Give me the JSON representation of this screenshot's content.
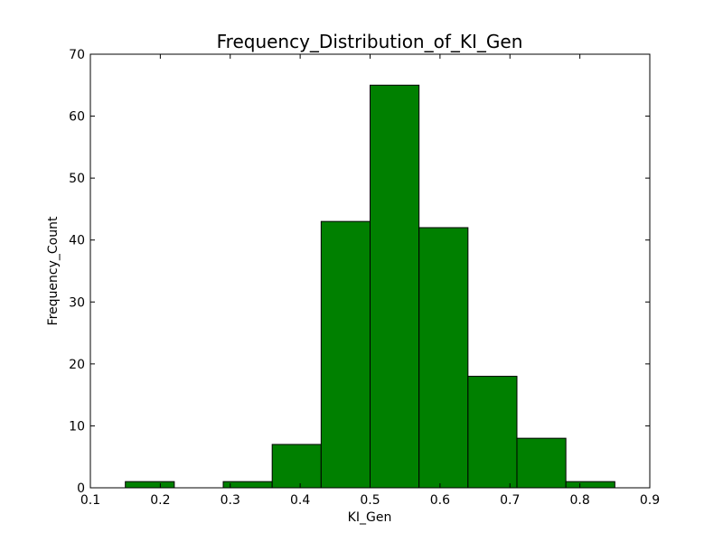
{
  "chart_data": {
    "type": "bar",
    "title": "Frequency_Distribution_of_KI_Gen",
    "xlabel": "KI_Gen",
    "ylabel": "Frequency_Count",
    "xlim": [
      0.1,
      0.9
    ],
    "ylim": [
      0,
      70
    ],
    "xticks": [
      "0.1",
      "0.2",
      "0.3",
      "0.4",
      "0.5",
      "0.6",
      "0.7",
      "0.8",
      "0.9"
    ],
    "yticks": [
      "0",
      "10",
      "20",
      "30",
      "40",
      "50",
      "60",
      "70"
    ],
    "grid": false,
    "bins": [
      {
        "x0": 0.15,
        "x1": 0.22,
        "count": 1
      },
      {
        "x0": 0.22,
        "x1": 0.29,
        "count": 0
      },
      {
        "x0": 0.29,
        "x1": 0.36,
        "count": 1
      },
      {
        "x0": 0.36,
        "x1": 0.43,
        "count": 7
      },
      {
        "x0": 0.43,
        "x1": 0.5,
        "count": 43
      },
      {
        "x0": 0.5,
        "x1": 0.57,
        "count": 65
      },
      {
        "x0": 0.57,
        "x1": 0.64,
        "count": 42
      },
      {
        "x0": 0.64,
        "x1": 0.71,
        "count": 18
      },
      {
        "x0": 0.71,
        "x1": 0.78,
        "count": 8
      },
      {
        "x0": 0.78,
        "x1": 0.85,
        "count": 1
      }
    ],
    "color": "#008000"
  }
}
